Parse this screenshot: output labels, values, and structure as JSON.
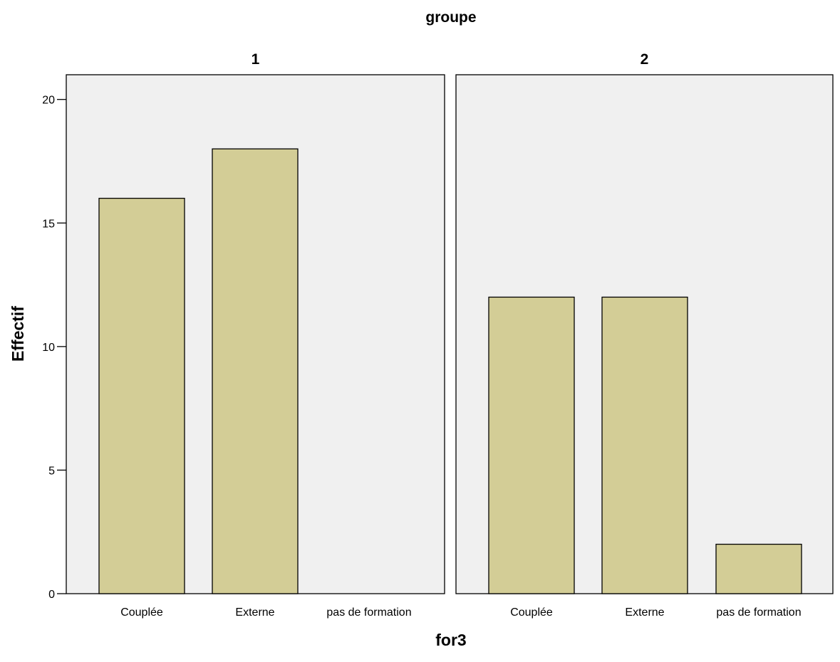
{
  "chart_data": {
    "type": "bar",
    "facet_title": "groupe",
    "xlabel": "for3",
    "ylabel": "Effectif",
    "ylim": [
      0,
      21
    ],
    "yticks": [
      "0",
      "5",
      "10",
      "15",
      "20"
    ],
    "grid": false,
    "colors": {
      "bar": "#d3cd96",
      "panel_background": "#f0f0f0",
      "outline": "#000000"
    },
    "categories": [
      "Couplée",
      "Externe",
      "pas de formation"
    ],
    "panels": [
      {
        "title": "1",
        "values": [
          16,
          18,
          0
        ]
      },
      {
        "title": "2",
        "values": [
          12,
          12,
          2
        ]
      }
    ]
  }
}
